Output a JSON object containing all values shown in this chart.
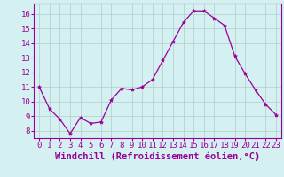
{
  "x": [
    0,
    1,
    2,
    3,
    4,
    5,
    6,
    7,
    8,
    9,
    10,
    11,
    12,
    13,
    14,
    15,
    16,
    17,
    18,
    19,
    20,
    21,
    22,
    23
  ],
  "y": [
    11.0,
    9.5,
    8.8,
    7.8,
    8.9,
    8.5,
    8.6,
    10.1,
    10.9,
    10.8,
    11.0,
    11.5,
    12.8,
    14.1,
    15.4,
    16.2,
    16.2,
    15.7,
    15.2,
    13.1,
    11.9,
    10.8,
    9.8,
    9.1
  ],
  "line_color": "#990099",
  "marker": "*",
  "marker_size": 3,
  "xlabel": "Windchill (Refroidissement éolien,°C)",
  "ylabel": "",
  "ylim": [
    7.5,
    16.7
  ],
  "xlim": [
    -0.5,
    23.5
  ],
  "yticks": [
    8,
    9,
    10,
    11,
    12,
    13,
    14,
    15,
    16
  ],
  "xticks": [
    0,
    1,
    2,
    3,
    4,
    5,
    6,
    7,
    8,
    9,
    10,
    11,
    12,
    13,
    14,
    15,
    16,
    17,
    18,
    19,
    20,
    21,
    22,
    23
  ],
  "background_color": "#d5f0f0",
  "grid_color": "#b0cccc",
  "tick_label_color": "#990099",
  "xlabel_color": "#990099",
  "tick_fontsize": 6.5,
  "xlabel_fontsize": 7.5
}
